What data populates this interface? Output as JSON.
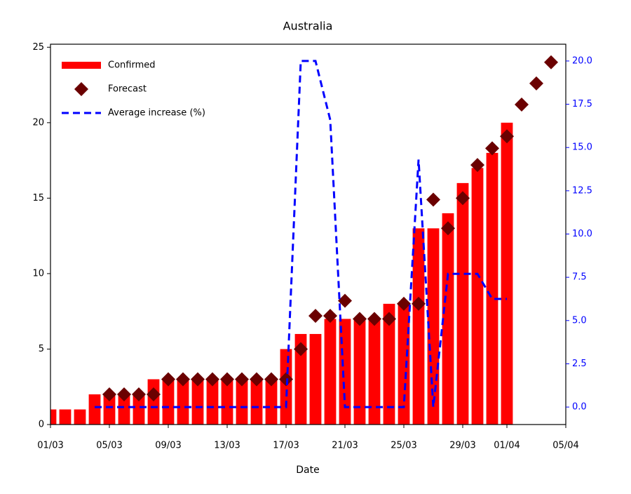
{
  "chart_data": {
    "type": "bar_scatter_line",
    "title": "Australia",
    "x_label": "Date",
    "categories": [
      "01/03",
      null,
      null,
      null,
      "05/03",
      null,
      null,
      null,
      "09/03",
      null,
      null,
      null,
      "13/03",
      null,
      null,
      null,
      "17/03",
      null,
      null,
      null,
      "21/03",
      null,
      null,
      null,
      "25/03",
      null,
      null,
      null,
      "29/03",
      null,
      null,
      "01/04",
      null,
      null,
      null,
      "05/04"
    ],
    "series": [
      {
        "name": "Confirmed",
        "type": "bar",
        "color": "#ff0000",
        "values": [
          1,
          1,
          1,
          2,
          2,
          2,
          2,
          3,
          3,
          3,
          3,
          3,
          3,
          3,
          3,
          3,
          5,
          6,
          6,
          7,
          7,
          7,
          7,
          8,
          8,
          13,
          13,
          14,
          16,
          17,
          18,
          20,
          null,
          null,
          null,
          null
        ]
      },
      {
        "name": "Forecast",
        "type": "scatter",
        "color": "#6b0000",
        "values": [
          null,
          null,
          null,
          null,
          2,
          2,
          2,
          2,
          3,
          3,
          3,
          3,
          3,
          3,
          3,
          3,
          3,
          5,
          7.2,
          7.2,
          8.2,
          7,
          7,
          7,
          8,
          8,
          14.9,
          13,
          15,
          17.2,
          18.3,
          19.1,
          21.2,
          22.6,
          24,
          null
        ]
      },
      {
        "name": "Average increase (%)",
        "type": "line",
        "axis": "y2",
        "color": "#0000ff",
        "values": [
          null,
          null,
          null,
          0,
          0,
          0,
          0,
          0,
          0,
          0,
          0,
          0,
          0,
          0,
          0,
          0,
          0,
          20,
          20,
          16.6,
          0,
          0,
          0,
          0,
          0,
          14.3,
          0,
          7.7,
          7.7,
          7.7,
          6.25,
          6.25,
          null,
          null,
          null,
          null
        ]
      }
    ],
    "ylim": [
      0,
      25.2
    ],
    "yticks": [
      0,
      5,
      10,
      15,
      20,
      25
    ],
    "y2lim": [
      -1.01,
      20.97
    ],
    "y2ticks": [
      {
        "value": 0,
        "label": "0.0"
      },
      {
        "value": 2.5,
        "label": "2.5"
      },
      {
        "value": 5,
        "label": "5.0"
      },
      {
        "value": 7.5,
        "label": "7.5"
      },
      {
        "value": 10,
        "label": "10.0"
      },
      {
        "value": 12.5,
        "label": "12.5"
      },
      {
        "value": 15,
        "label": "15.0"
      },
      {
        "value": 17.5,
        "label": "17.5"
      },
      {
        "value": 20,
        "label": "20.0"
      }
    ],
    "legend": "upper-left"
  }
}
